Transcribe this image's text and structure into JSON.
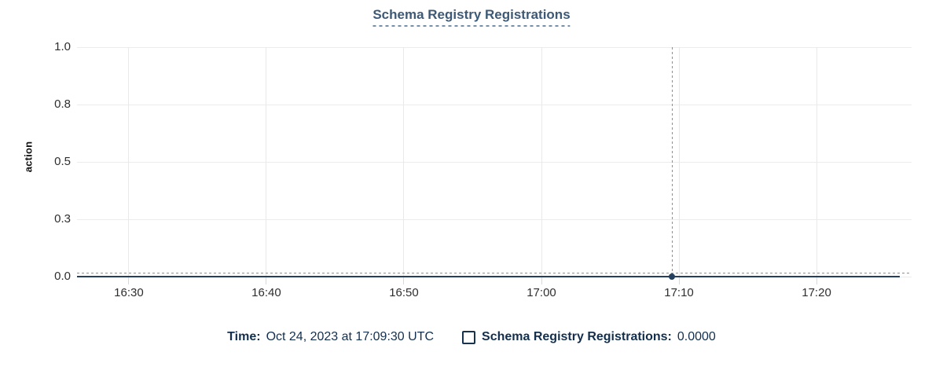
{
  "title": "Schema Registry Registrations",
  "y_axis": {
    "label": "action",
    "tick_labels": [
      "1.0",
      "0.8",
      "0.5",
      "0.3",
      "0.0"
    ]
  },
  "x_axis": {
    "tick_labels": [
      "16:30",
      "16:40",
      "16:50",
      "17:00",
      "17:10",
      "17:20"
    ]
  },
  "tooltip": {
    "time_label": "Time:",
    "time_value": "Oct 24, 2023 at 17:09:30 UTC",
    "series_label": "Schema Registry Registrations:",
    "series_value": "0.0000"
  },
  "colors": {
    "title": "#3d5976",
    "title_underline": "#7590ab",
    "legend_text": "#132f4d",
    "series_line": "#24405e",
    "crosshair": "#7a92ab",
    "grid": "#ececec",
    "axis_tick_mark": "#d9d9d9",
    "tick_label": "#2e2e2e"
  },
  "chart_data": {
    "type": "line",
    "title": "Schema Registry Registrations",
    "xlabel": "",
    "ylabel": "action",
    "ylim": [
      0,
      1
    ],
    "x_tick_labels": [
      "16:30",
      "16:40",
      "16:50",
      "17:00",
      "17:10",
      "17:20"
    ],
    "y_tick_values": [
      1.0,
      0.75,
      0.5,
      0.25,
      0.0
    ],
    "y_tick_labels": [
      "1.0",
      "0.8",
      "0.5",
      "0.3",
      "0.0"
    ],
    "grid": true,
    "legend_position": "bottom",
    "series": [
      {
        "name": "Schema Registry Registrations",
        "description": "constant flat line at 0 across the entire visible time range",
        "x": [
          "16:26",
          "17:26"
        ],
        "values": [
          0,
          0
        ]
      }
    ],
    "cursor": {
      "time": "Oct 24, 2023 at 17:09:30 UTC",
      "x_label": "17:09:30",
      "y_value": 0.0,
      "x_frac": 0.713
    },
    "layout": {
      "x_first_tick_frac": 0.0621,
      "x_tick_step_frac": 0.1648,
      "series_end_frac": 0.986
    }
  }
}
